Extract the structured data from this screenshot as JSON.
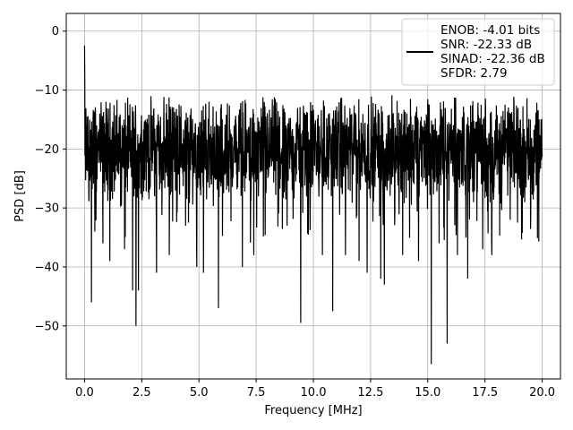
{
  "chart_data": {
    "type": "line",
    "xlabel": "Frequency [MHz]",
    "ylabel": "PSD [dB]",
    "xlim": [
      -0.8,
      20.8
    ],
    "ylim": [
      -59,
      3
    ],
    "xticks": [
      0.0,
      2.5,
      5.0,
      7.5,
      10.0,
      12.5,
      15.0,
      17.5,
      20.0
    ],
    "xtick_labels": [
      "0.0",
      "2.5",
      "5.0",
      "7.5",
      "10.0",
      "12.5",
      "15.0",
      "17.5",
      "20.0"
    ],
    "yticks": [
      0,
      -10,
      -20,
      -30,
      -40,
      -50
    ],
    "ytick_labels": [
      "0",
      "−10",
      "−20",
      "−30",
      "−40",
      "−50"
    ],
    "grid": true,
    "legend": {
      "placement": "top-right",
      "entries": [
        "ENOB: -4.01 bits",
        "SNR: -22.33 dB",
        "SINAD: -22.36 dB",
        "SFDR: 2.79"
      ]
    },
    "series": [
      {
        "color": "#000000",
        "x_start": 0.0,
        "x_end": 20.0,
        "points": 2048,
        "level_db": -20,
        "spread_db": 6,
        "max_db": -6.5,
        "dc_peak_db": -2.5,
        "dips": [
          {
            "x": 0.3,
            "y": -46
          },
          {
            "x": 0.45,
            "y": -34
          },
          {
            "x": 0.8,
            "y": -36
          },
          {
            "x": 1.1,
            "y": -39
          },
          {
            "x": 1.75,
            "y": -37
          },
          {
            "x": 2.1,
            "y": -44
          },
          {
            "x": 2.25,
            "y": -50
          },
          {
            "x": 2.35,
            "y": -44
          },
          {
            "x": 3.15,
            "y": -41
          },
          {
            "x": 3.7,
            "y": -38
          },
          {
            "x": 4.9,
            "y": -40
          },
          {
            "x": 5.2,
            "y": -41
          },
          {
            "x": 5.85,
            "y": -47
          },
          {
            "x": 6.9,
            "y": -40
          },
          {
            "x": 7.4,
            "y": -38
          },
          {
            "x": 8.85,
            "y": -33
          },
          {
            "x": 9.45,
            "y": -49.5
          },
          {
            "x": 10.4,
            "y": -38
          },
          {
            "x": 10.85,
            "y": -47.5
          },
          {
            "x": 11.4,
            "y": -38
          },
          {
            "x": 12.0,
            "y": -39
          },
          {
            "x": 12.35,
            "y": -41
          },
          {
            "x": 12.95,
            "y": -42
          },
          {
            "x": 13.1,
            "y": -43
          },
          {
            "x": 13.9,
            "y": -38
          },
          {
            "x": 14.6,
            "y": -39
          },
          {
            "x": 15.15,
            "y": -56.5
          },
          {
            "x": 15.5,
            "y": -36
          },
          {
            "x": 15.85,
            "y": -53
          },
          {
            "x": 16.3,
            "y": -38
          },
          {
            "x": 16.75,
            "y": -42
          },
          {
            "x": 17.4,
            "y": -37
          },
          {
            "x": 17.8,
            "y": -38
          },
          {
            "x": 18.6,
            "y": -32
          },
          {
            "x": 19.5,
            "y": -31
          }
        ]
      }
    ]
  }
}
